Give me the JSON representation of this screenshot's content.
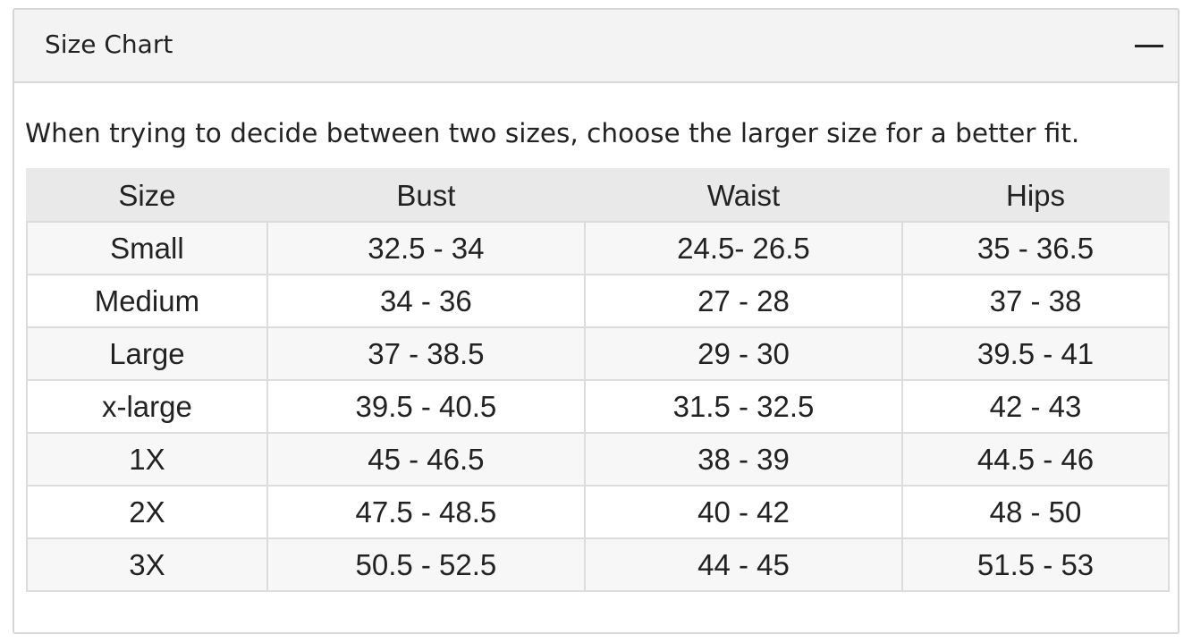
{
  "panel": {
    "title": "Size Chart",
    "collapse_icon": "minus-icon",
    "note": "When trying to decide between two sizes, choose the larger size for a better fit."
  },
  "table": {
    "headers": [
      "Size",
      "Bust",
      "Waist",
      "Hips"
    ],
    "rows": [
      [
        "Small",
        "32.5 - 34",
        "24.5- 26.5",
        "35 - 36.5"
      ],
      [
        "Medium",
        "34 - 36",
        "27 - 28",
        "37 - 38"
      ],
      [
        "Large",
        "37 - 38.5",
        "29 - 30",
        "39.5 - 41"
      ],
      [
        "x-large",
        "39.5 - 40.5",
        "31.5 - 32.5",
        "42 - 43"
      ],
      [
        "1X",
        "45 - 46.5",
        "38 - 39",
        "44.5 - 46"
      ],
      [
        "2X",
        "47.5 - 48.5",
        "40 - 42",
        "48 - 50"
      ],
      [
        "3X",
        "50.5 - 52.5",
        "44 - 45",
        "51.5 - 53"
      ]
    ]
  }
}
